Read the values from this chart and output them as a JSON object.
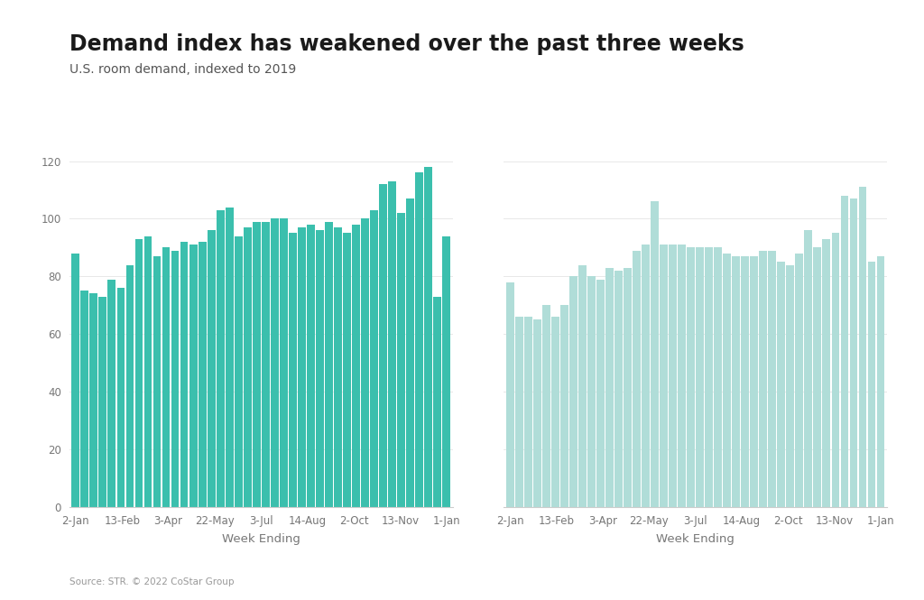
{
  "title": "Demand index has weakened over the past three weeks",
  "subtitle": "U.S. room demand, indexed to 2019",
  "source": "Source: STR. © 2022 CoStar Group",
  "xlabel": "Week Ending",
  "ylim": [
    0,
    128
  ],
  "yticks": [
    0,
    20,
    40,
    60,
    80,
    100,
    120
  ],
  "background_color": "#ffffff",
  "bar_color_left": "#3bbfad",
  "bar_color_right": "#b0ddd8",
  "xtick_labels": [
    "2-Jan",
    "13-Feb",
    "3-Apr",
    "22-May",
    "3-Jul",
    "14-Aug",
    "2-Oct",
    "13-Nov",
    "1-Jan"
  ],
  "left_values": [
    88,
    75,
    74,
    73,
    79,
    76,
    84,
    93,
    94,
    87,
    90,
    89,
    92,
    91,
    92,
    96,
    103,
    104,
    94,
    97,
    99,
    99,
    100,
    100,
    95,
    97,
    98,
    96,
    99,
    97,
    95,
    98,
    100,
    103,
    112,
    113,
    102,
    107,
    116,
    118,
    73,
    94
  ],
  "right_values": [
    78,
    66,
    66,
    65,
    70,
    66,
    70,
    80,
    84,
    80,
    79,
    83,
    82,
    83,
    89,
    91,
    106,
    91,
    91,
    91,
    90,
    90,
    90,
    90,
    88,
    87,
    87,
    87,
    89,
    89,
    85,
    84,
    88,
    96,
    90,
    93,
    95,
    108,
    107,
    111,
    85,
    87
  ],
  "title_fontsize": 17,
  "subtitle_fontsize": 10,
  "tick_fontsize": 8.5,
  "xlabel_fontsize": 9.5,
  "source_fontsize": 7.5,
  "title_color": "#1a1a1a",
  "subtitle_color": "#555555",
  "tick_color": "#777777",
  "grid_color": "#e8e8e8",
  "spine_color": "#cccccc",
  "source_color": "#999999"
}
